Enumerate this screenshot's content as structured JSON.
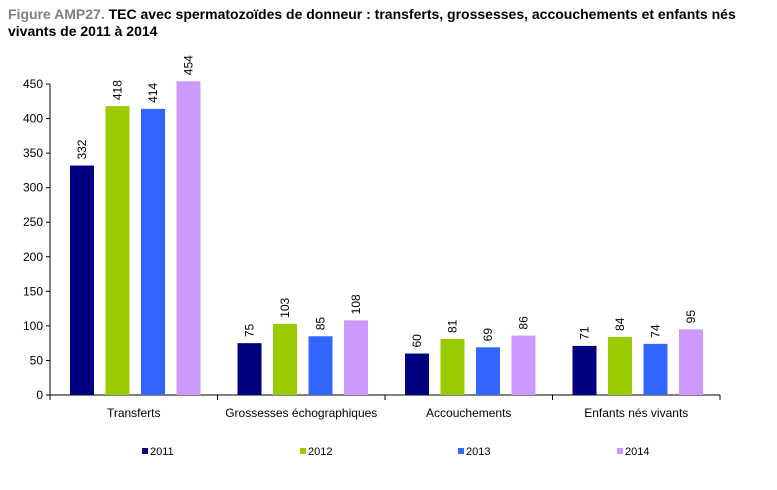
{
  "figure_prefix": "Figure AMP27.",
  "figure_title": "TEC avec spermatozoïdes de donneur : transferts, grossesses, accouchements et enfants nés vivants de 2011 à 2014",
  "chart_data": {
    "type": "bar",
    "title": "TEC avec spermatozoïdes de donneur : transferts, grossesses, accouchements et enfants nés vivants de 2011 à 2014",
    "categories": [
      "Transferts",
      "Grossesses échographiques",
      "Accouchements",
      "Enfants nés vivants"
    ],
    "series": [
      {
        "name": "2011",
        "color": "#000080",
        "values": [
          332,
          75,
          60,
          71
        ]
      },
      {
        "name": "2012",
        "color": "#99cc00",
        "values": [
          418,
          103,
          81,
          84
        ]
      },
      {
        "name": "2013",
        "color": "#3366ff",
        "values": [
          414,
          85,
          69,
          74
        ]
      },
      {
        "name": "2014",
        "color": "#cc99ff",
        "values": [
          454,
          108,
          86,
          95
        ]
      }
    ],
    "ylim": [
      0,
      450
    ],
    "yticks": [
      0,
      50,
      100,
      150,
      200,
      250,
      300,
      350,
      400,
      450
    ],
    "xlabel": "",
    "ylabel": "",
    "grid": false,
    "legend_position": "bottom"
  }
}
